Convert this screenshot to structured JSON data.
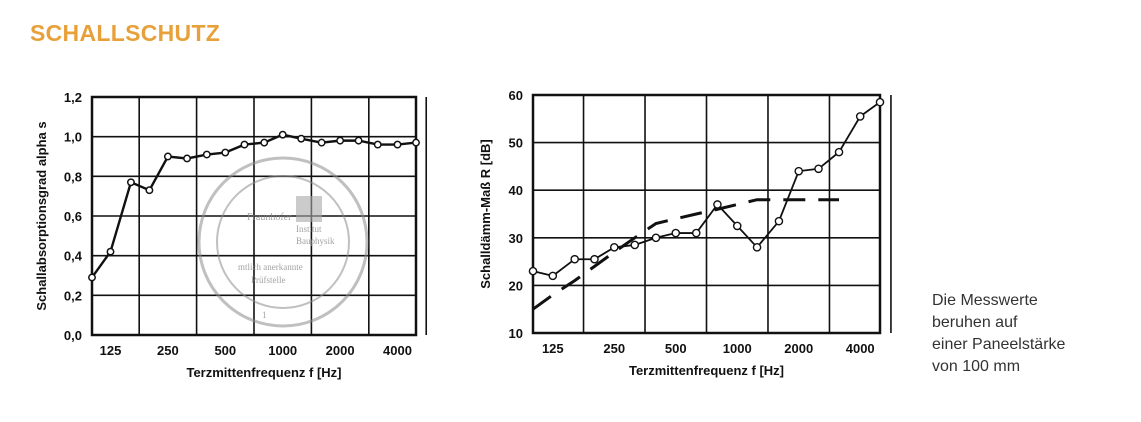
{
  "title": "SCHALLSCHUTZ",
  "note_lines": [
    "Die Messwerte",
    "beruhen auf",
    "einer Paneelstärke",
    "von 100 mm"
  ],
  "colors": {
    "title": "#e8a13a",
    "ink": "#111111",
    "stamp": "#8c8c8c"
  },
  "chart_data": [
    {
      "type": "line",
      "xlabel": "Terzmittenfrequenz f [Hz]",
      "ylabel": "Schallabsorptionsgrad alpha s",
      "x_scale": "log",
      "xlim": [
        100,
        5000
      ],
      "ylim": [
        0,
        1.2
      ],
      "xticks": [
        "125",
        "250",
        "500",
        "1000",
        "2000",
        "4000"
      ],
      "yticks": [
        "0,0",
        "0,2",
        "0,4",
        "0,6",
        "0,8",
        "1,0",
        "1,2"
      ],
      "grid": true,
      "stamp_text": [
        "Fraunhofer",
        "Institut",
        "Bauphysik",
        "mtlich anerkannte",
        "Prüfstelle",
        "1"
      ],
      "series": [
        {
          "style": "solid-markers",
          "x": [
            100,
            125,
            160,
            200,
            250,
            315,
            400,
            500,
            630,
            800,
            1000,
            1250,
            1600,
            2000,
            2500,
            3150,
            4000,
            5000
          ],
          "y": [
            0.29,
            0.42,
            0.77,
            0.73,
            0.9,
            0.89,
            0.91,
            0.92,
            0.96,
            0.97,
            1.01,
            0.99,
            0.97,
            0.98,
            0.98,
            0.96,
            0.96,
            0.97
          ]
        }
      ]
    },
    {
      "type": "line",
      "xlabel": "Terzmittenfrequenz f [Hz]",
      "ylabel": "Schalldämm-Maß R [dB]",
      "x_scale": "log",
      "xlim": [
        100,
        5000
      ],
      "ylim": [
        10,
        60
      ],
      "xticks": [
        "125",
        "250",
        "500",
        "1000",
        "2000",
        "4000"
      ],
      "yticks": [
        "10",
        "20",
        "30",
        "40",
        "50",
        "60"
      ],
      "grid": true,
      "series": [
        {
          "style": "solid-markers",
          "x": [
            100,
            125,
            160,
            200,
            250,
            315,
            400,
            500,
            630,
            800,
            1000,
            1250,
            1600,
            2000,
            2500,
            3150,
            4000,
            5000
          ],
          "y": [
            23,
            22,
            25.5,
            25.5,
            28,
            28.5,
            30,
            31,
            31,
            37,
            32.5,
            28,
            33.5,
            44,
            44.5,
            48,
            55.5,
            58.5
          ]
        },
        {
          "style": "dashed-reference",
          "x": [
            100,
            125,
            160,
            200,
            250,
            315,
            400,
            500,
            630,
            800,
            1000,
            1250,
            1600,
            2000,
            2500,
            3150
          ],
          "y": [
            15,
            18,
            21,
            24,
            27,
            30,
            33,
            34,
            35,
            36,
            37,
            38,
            38,
            38,
            38,
            38
          ]
        }
      ]
    }
  ]
}
